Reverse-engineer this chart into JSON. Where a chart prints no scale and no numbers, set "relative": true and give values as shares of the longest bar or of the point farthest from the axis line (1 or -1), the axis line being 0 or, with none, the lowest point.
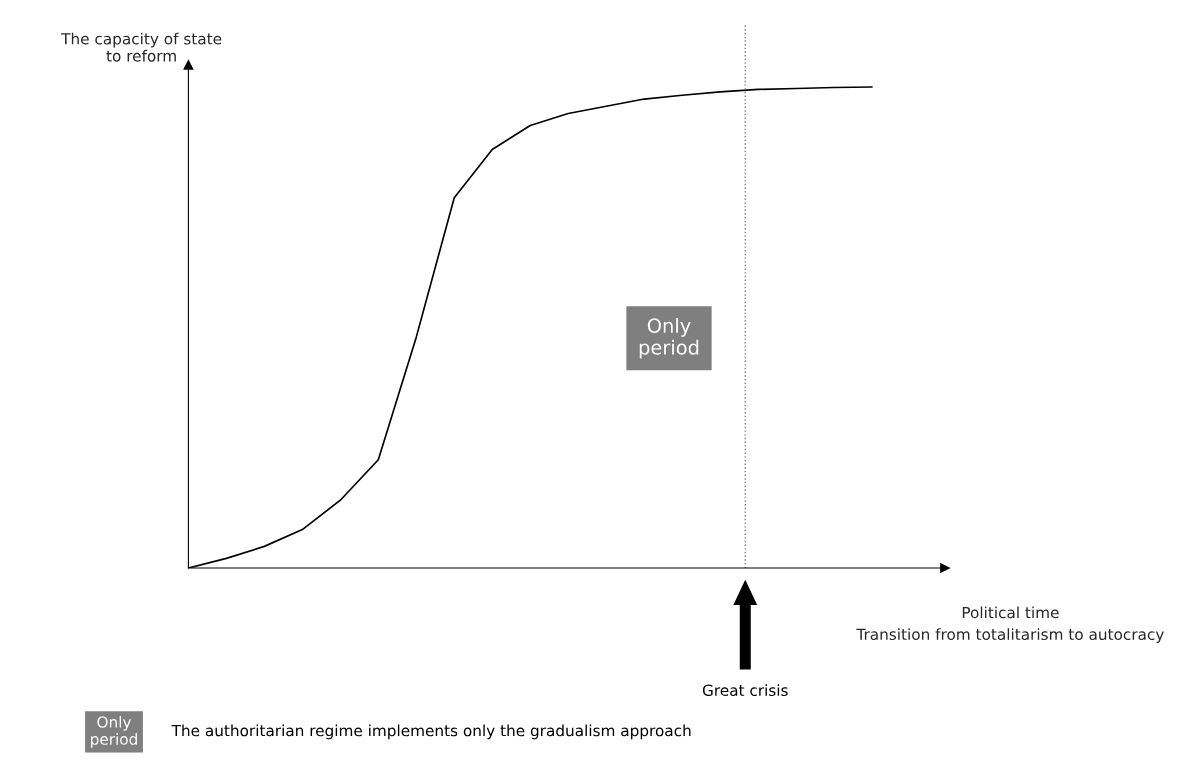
{
  "chart_data": {
    "type": "line",
    "relative": true,
    "marker": "none",
    "line_style": "solid",
    "ylabel": "The capacity of state\nto reform",
    "xlabel": "Political time\nTransition from totalitarism to autocracy",
    "categories": [
      null,
      null,
      null,
      null,
      null,
      null,
      null,
      null,
      null,
      null,
      null,
      null,
      null,
      null,
      null,
      null,
      null,
      null,
      null
    ],
    "series": [
      {
        "color": "#000000",
        "values": [
          0,
          0.02,
          0.045,
          0.08,
          0.141,
          0.225,
          0.48,
          0.77,
          0.87,
          0.92,
          0.945,
          0.96,
          0.975,
          0.983,
          0.99,
          0.995,
          0.997,
          0.999,
          1
        ]
      }
    ],
    "annotations": [
      "Only\nperiod",
      "Only\nperiod",
      "The authoritarian regime implements only the gradualism approach",
      "Great crisis"
    ]
  }
}
